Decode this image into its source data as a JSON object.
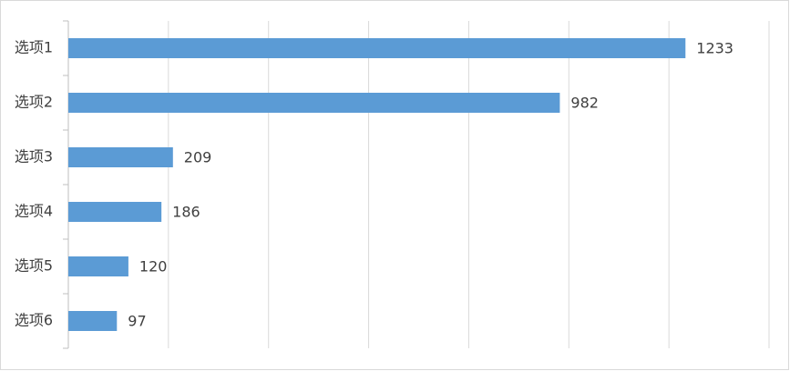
{
  "chart_data": {
    "type": "bar",
    "orientation": "horizontal",
    "categories": [
      "选项1",
      "选项2",
      "选项3",
      "选项4",
      "选项5",
      "选项6"
    ],
    "values": [
      1233,
      982,
      209,
      186,
      120,
      97
    ],
    "color": "#5b9bd5",
    "xlim": [
      0,
      1400
    ],
    "xticks": [
      0,
      200,
      400,
      600,
      800,
      1000,
      1200,
      1400
    ],
    "grid": true
  }
}
